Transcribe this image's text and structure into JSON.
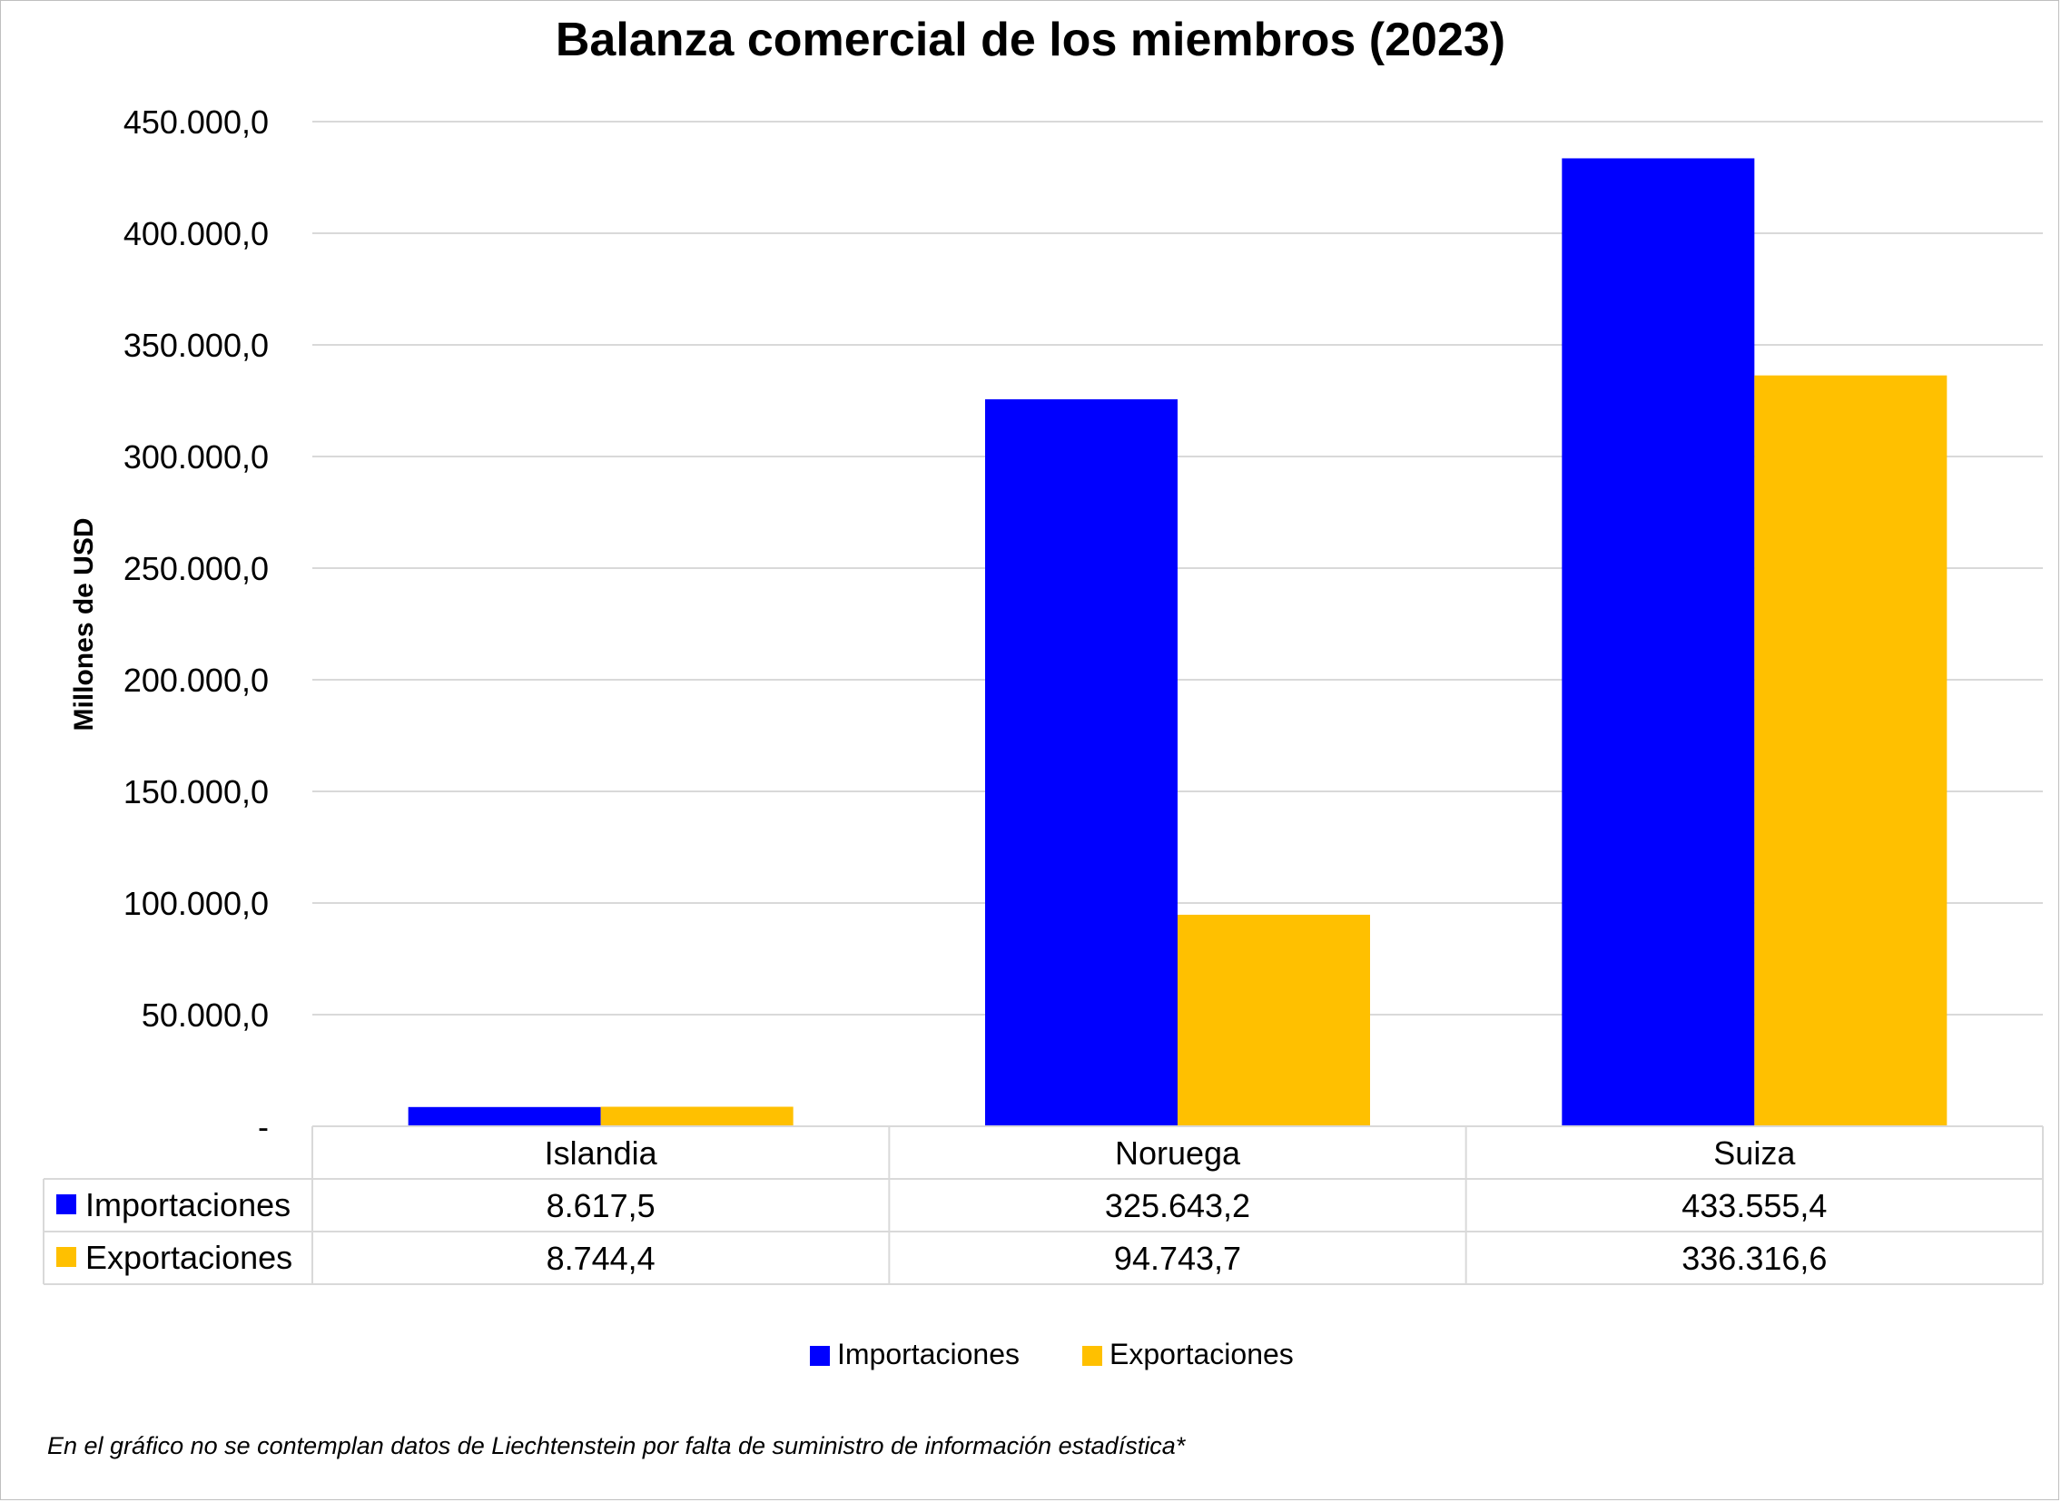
{
  "chart_data": {
    "type": "bar",
    "title": "Balanza comercial de los miembros (2023)",
    "ylabel": "Millones de USD",
    "xlabel": "",
    "categories": [
      "Islandia",
      "Noruega",
      "Suiza"
    ],
    "series": [
      {
        "name": "Importaciones",
        "color": "#0000ff",
        "values": [
          8617.5,
          325643.2,
          433555.4
        ],
        "table_values": [
          "8.617,5",
          "325.643,2",
          "433.555,4"
        ]
      },
      {
        "name": "Exportaciones",
        "color": "#ffc000",
        "values": [
          8744.4,
          94743.7,
          336316.6
        ],
        "table_values": [
          "8.744,4",
          "94.743,7",
          "336.316,6"
        ]
      }
    ],
    "ylim": [
      0,
      450000
    ],
    "yticks": [
      0,
      50000,
      100000,
      150000,
      200000,
      250000,
      300000,
      350000,
      400000,
      450000
    ],
    "ytick_labels": [
      "-",
      "50.000,0",
      "100.000,0",
      "150.000,0",
      "200.000,0",
      "250.000,0",
      "300.000,0",
      "350.000,0",
      "400.000,0",
      "450.000,0"
    ],
    "grid": true,
    "legend_position": "bottom",
    "data_table": true
  },
  "footnote": "En el gráfico no se contemplan datos de Liechtenstein por falta de suministro de información estadística*"
}
